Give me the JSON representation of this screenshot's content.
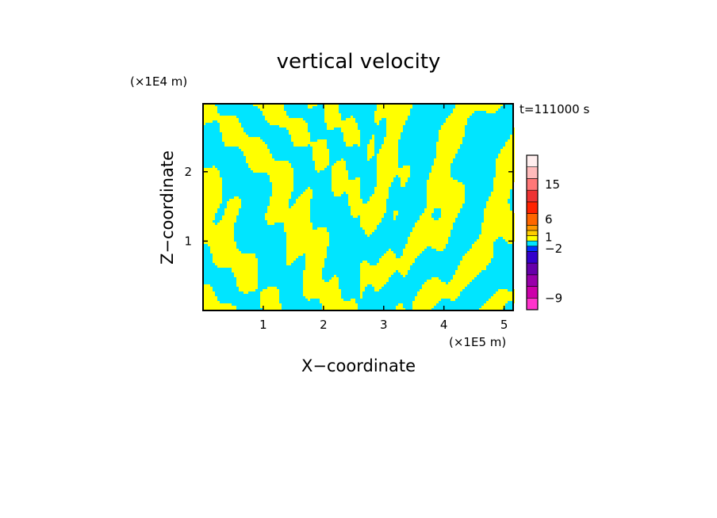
{
  "chart_data": {
    "type": "heatmap",
    "title": "vertical velocity",
    "xlabel": "X−coordinate",
    "ylabel": "Z−coordinate",
    "x_unit": "(×1E5 m)",
    "y_unit": "(×1E4 m)",
    "time_label": "t=111000 s",
    "xlim": [
      0,
      5.15
    ],
    "ylim": [
      0,
      2.98
    ],
    "x_ticks": [
      1,
      2,
      3,
      4,
      5
    ],
    "y_ticks": [
      1,
      2
    ],
    "dominant_colors": {
      "positive": "#ffff00",
      "negative": "#00e5ff"
    },
    "colorbar": {
      "colors": [
        "#ff33cc",
        "#cc00aa",
        "#9900aa",
        "#6600aa",
        "#3300cc",
        "#0033ff",
        "#00e5ff",
        "#ffff00",
        "#ffcc00",
        "#ff9900",
        "#ff6600",
        "#ff2200",
        "#ee3333",
        "#ff7777",
        "#ffbbbb",
        "#ffeeee"
      ],
      "labels": [
        {
          "text": "−9",
          "index": 1
        },
        {
          "text": "−2",
          "index": 5.5
        },
        {
          "text": "1",
          "index": 7.7
        },
        {
          "text": "6",
          "index": 10.5
        },
        {
          "text": "15",
          "index": 13.5
        }
      ]
    }
  }
}
